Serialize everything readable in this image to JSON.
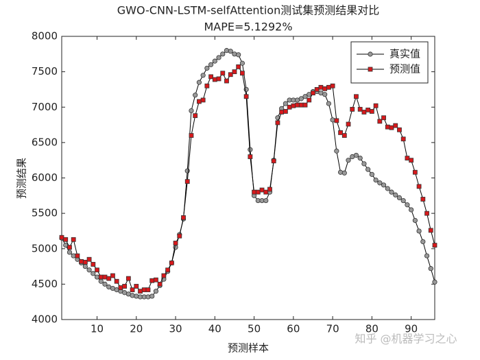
{
  "chart_data": {
    "type": "line",
    "title": "GWO-CNN-LSTM-selfAttention测试集预测结果对比",
    "subtitle": "MAPE=5.1292%",
    "xlabel": "预测样本",
    "ylabel": "预测结果",
    "watermark": "知乎 @机器学习之心",
    "legend": "upper right",
    "x": [
      1,
      2,
      3,
      4,
      5,
      6,
      7,
      8,
      9,
      10,
      11,
      12,
      13,
      14,
      15,
      16,
      17,
      18,
      19,
      20,
      21,
      22,
      23,
      24,
      25,
      26,
      27,
      28,
      29,
      30,
      31,
      32,
      33,
      34,
      35,
      36,
      37,
      38,
      39,
      40,
      41,
      42,
      43,
      44,
      45,
      46,
      47,
      48,
      49,
      50,
      51,
      52,
      53,
      54,
      55,
      56,
      57,
      58,
      59,
      60,
      61,
      62,
      63,
      64,
      65,
      66,
      67,
      68,
      69,
      70,
      71,
      72,
      73,
      74,
      75,
      76,
      77,
      78,
      79,
      80,
      81,
      82,
      83,
      84,
      85,
      86,
      87,
      88,
      89,
      90,
      91,
      92,
      93,
      94,
      95,
      96
    ],
    "xlim": [
      1,
      96
    ],
    "xticks": [
      10,
      20,
      30,
      40,
      50,
      60,
      70,
      80,
      90
    ],
    "ylim": [
      4000,
      8000
    ],
    "yticks": [
      4000,
      4500,
      5000,
      5500,
      6000,
      6500,
      7000,
      7500,
      8000
    ],
    "series": [
      {
        "name": "真实值",
        "color": "#999999",
        "marker": "circle",
        "values": [
          5150,
          5050,
          4950,
          4900,
          4850,
          4800,
          4750,
          4700,
          4650,
          4600,
          4540,
          4500,
          4460,
          4440,
          4420,
          4400,
          4380,
          4360,
          4340,
          4330,
          4320,
          4320,
          4320,
          4330,
          4400,
          4480,
          4570,
          4680,
          4800,
          5020,
          5200,
          5420,
          6100,
          6950,
          7170,
          7350,
          7450,
          7550,
          7600,
          7650,
          7700,
          7750,
          7800,
          7790,
          7750,
          7740,
          7620,
          7250,
          6400,
          5750,
          5680,
          5680,
          5680,
          5800,
          6250,
          6850,
          6980,
          7050,
          7100,
          7100,
          7100,
          7120,
          7150,
          7180,
          7220,
          7220,
          7200,
          7180,
          7050,
          6820,
          6380,
          6080,
          6070,
          6250,
          6300,
          6320,
          6280,
          6200,
          6120,
          6050,
          5970,
          5930,
          5900,
          5850,
          5800,
          5760,
          5720,
          5680,
          5620,
          5550,
          5400,
          5250,
          5100,
          4900,
          4720,
          4530
        ]
      },
      {
        "name": "预测值",
        "color": "#d7191c",
        "marker": "square",
        "values": [
          5160,
          5130,
          5020,
          5130,
          4900,
          4820,
          4810,
          4850,
          4780,
          4700,
          4600,
          4600,
          4580,
          4620,
          4540,
          4450,
          4470,
          4580,
          4420,
          4470,
          4400,
          4420,
          4420,
          4550,
          4560,
          4500,
          4620,
          4700,
          4800,
          5080,
          5180,
          5440,
          5950,
          6600,
          6880,
          7080,
          7100,
          7300,
          7430,
          7390,
          7400,
          7480,
          7370,
          7460,
          7500,
          7570,
          7480,
          7150,
          6300,
          5800,
          5800,
          5830,
          5800,
          5840,
          6240,
          6780,
          6930,
          6940,
          7000,
          7020,
          7030,
          7030,
          7030,
          7100,
          7200,
          7250,
          7280,
          7260,
          7280,
          7300,
          6810,
          6640,
          6600,
          6760,
          6970,
          7150,
          6970,
          6930,
          6960,
          6940,
          7020,
          6800,
          6850,
          6720,
          6710,
          6740,
          6680,
          6550,
          6280,
          6250,
          6080,
          5880,
          5700,
          5500,
          5260,
          5050
        ]
      }
    ]
  }
}
